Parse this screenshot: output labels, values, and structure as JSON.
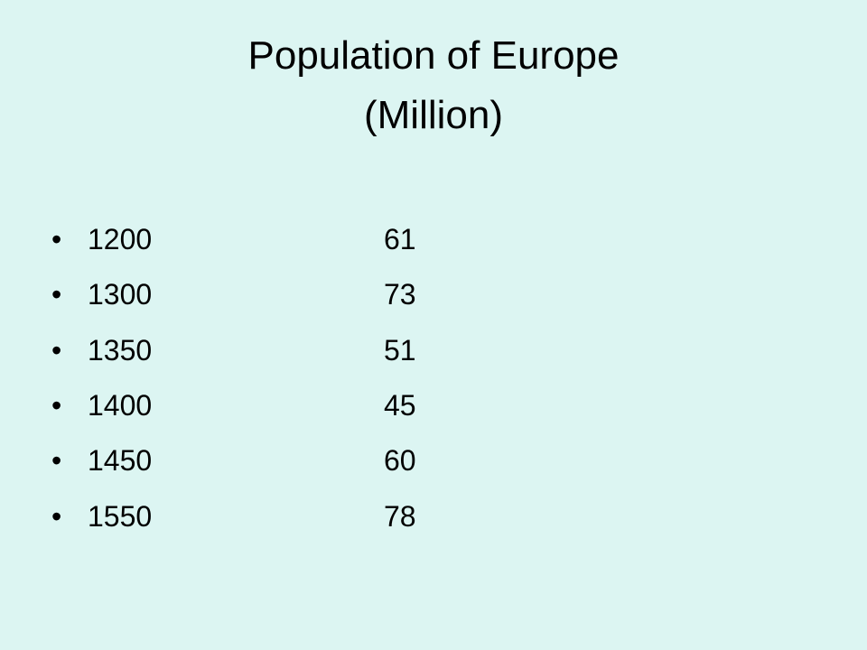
{
  "slide": {
    "title": [
      "Population of Europe",
      "(Million)"
    ],
    "items": [
      {
        "year": 1200,
        "value": 61
      },
      {
        "year": 1300,
        "value": 73
      },
      {
        "year": 1350,
        "value": 51
      },
      {
        "year": 1400,
        "value": 45
      },
      {
        "year": 1450,
        "value": 60
      },
      {
        "year": 1550,
        "value": 78
      }
    ]
  }
}
